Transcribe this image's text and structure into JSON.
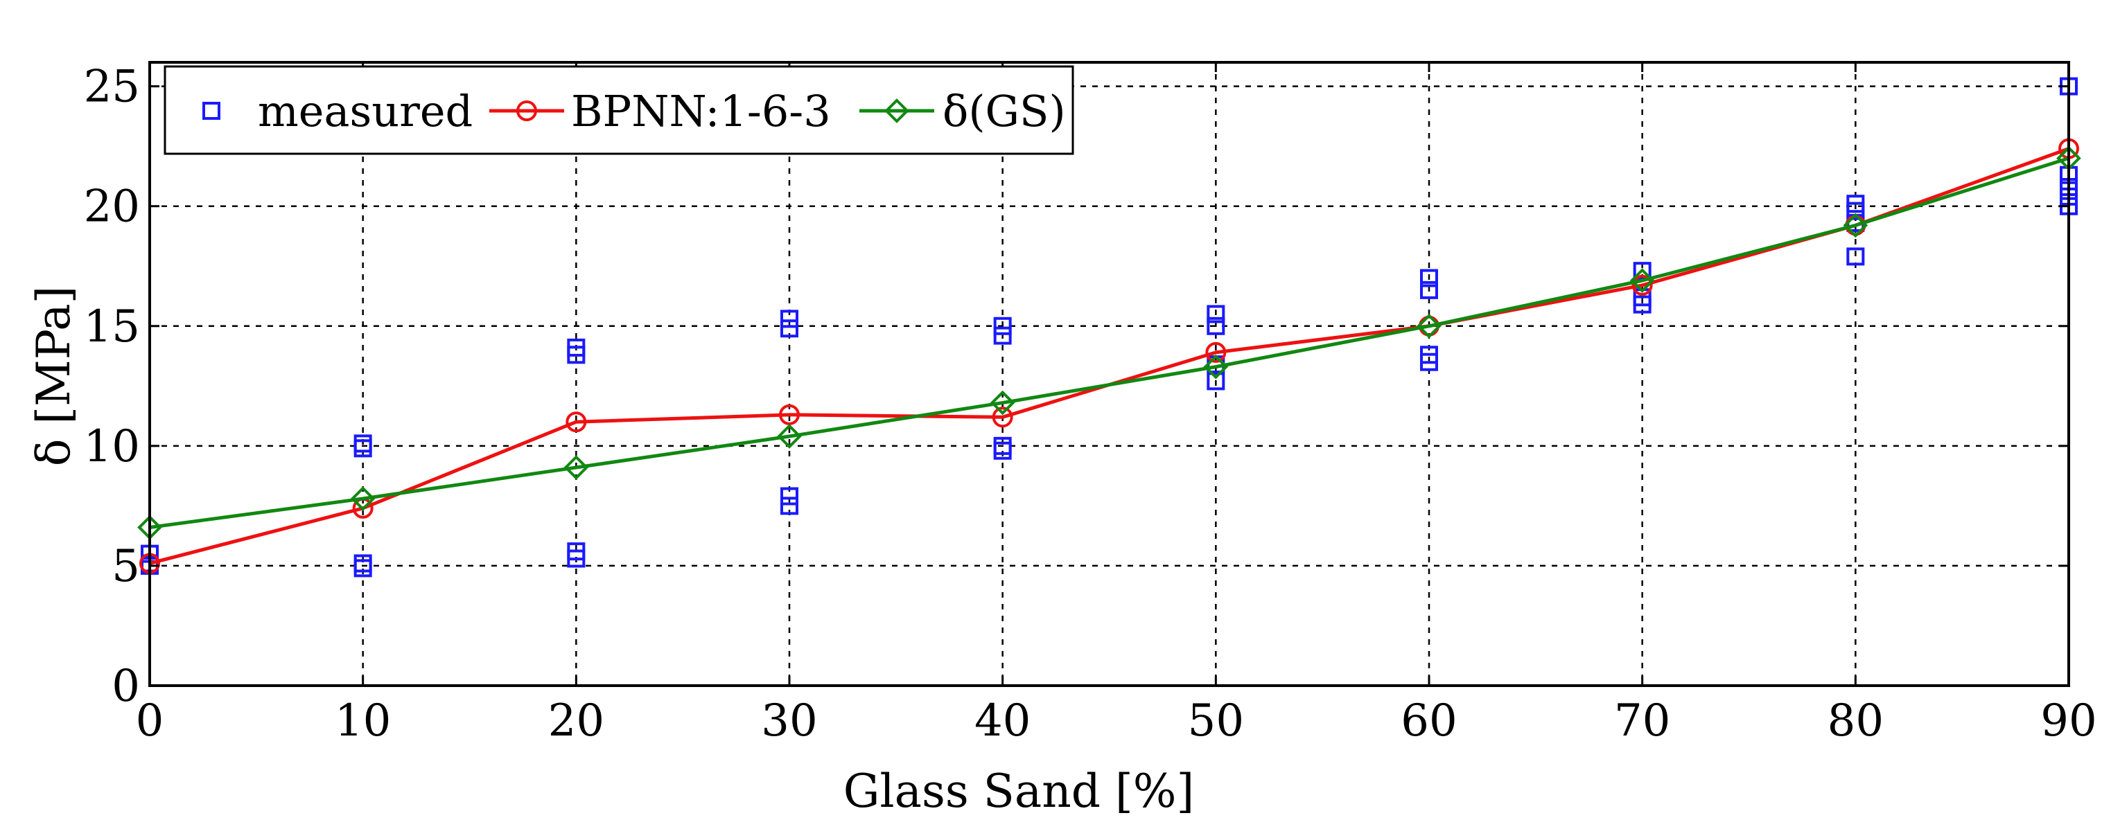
{
  "chart_data": {
    "type": "line",
    "title": "",
    "xlabel": "Glass Sand [%]",
    "ylabel": "δ [MPa]",
    "xlim": [
      0,
      90
    ],
    "ylim": [
      0,
      26
    ],
    "xticks": [
      0,
      10,
      20,
      30,
      40,
      50,
      60,
      70,
      80,
      90
    ],
    "yticks": [
      0,
      5,
      10,
      15,
      20,
      25
    ],
    "x_tick_labels": [
      "0",
      "10",
      "20",
      "30",
      "40",
      "50",
      "60",
      "70",
      "80",
      "90"
    ],
    "y_tick_labels": [
      "0",
      "5",
      "10",
      "15",
      "20",
      "25"
    ],
    "grid": true,
    "legend_position": "top-left",
    "series": [
      {
        "name": "measured",
        "style": "markers",
        "marker": "square",
        "color": "#1a1aff",
        "points": [
          {
            "x": 0,
            "y": 5.0
          },
          {
            "x": 0,
            "y": 5.1
          },
          {
            "x": 0,
            "y": 5.5
          },
          {
            "x": 10,
            "y": 4.9
          },
          {
            "x": 10,
            "y": 5.1
          },
          {
            "x": 10,
            "y": 9.9
          },
          {
            "x": 10,
            "y": 10.1
          },
          {
            "x": 20,
            "y": 5.3
          },
          {
            "x": 20,
            "y": 5.6
          },
          {
            "x": 20,
            "y": 13.8
          },
          {
            "x": 20,
            "y": 14.1
          },
          {
            "x": 30,
            "y": 7.5
          },
          {
            "x": 30,
            "y": 7.9
          },
          {
            "x": 30,
            "y": 14.9
          },
          {
            "x": 30,
            "y": 15.3
          },
          {
            "x": 40,
            "y": 9.8
          },
          {
            "x": 40,
            "y": 10.0
          },
          {
            "x": 40,
            "y": 14.6
          },
          {
            "x": 40,
            "y": 15.0
          },
          {
            "x": 50,
            "y": 12.7
          },
          {
            "x": 50,
            "y": 13.4
          },
          {
            "x": 50,
            "y": 15.0
          },
          {
            "x": 50,
            "y": 15.5
          },
          {
            "x": 60,
            "y": 13.5
          },
          {
            "x": 60,
            "y": 13.8
          },
          {
            "x": 60,
            "y": 16.5
          },
          {
            "x": 60,
            "y": 17.0
          },
          {
            "x": 70,
            "y": 15.9
          },
          {
            "x": 70,
            "y": 16.2
          },
          {
            "x": 70,
            "y": 17.3
          },
          {
            "x": 80,
            "y": 17.9
          },
          {
            "x": 80,
            "y": 19.3
          },
          {
            "x": 80,
            "y": 19.8
          },
          {
            "x": 80,
            "y": 20.1
          },
          {
            "x": 90,
            "y": 20.0
          },
          {
            "x": 90,
            "y": 20.4
          },
          {
            "x": 90,
            "y": 20.8
          },
          {
            "x": 90,
            "y": 21.3
          },
          {
            "x": 90,
            "y": 25.0
          }
        ]
      },
      {
        "name": "BPNN:1-6-3",
        "style": "line-markers",
        "marker": "circle",
        "color": "#ee1111",
        "points": [
          {
            "x": 0,
            "y": 5.1
          },
          {
            "x": 10,
            "y": 7.4
          },
          {
            "x": 20,
            "y": 11.0
          },
          {
            "x": 30,
            "y": 11.3
          },
          {
            "x": 40,
            "y": 11.2
          },
          {
            "x": 50,
            "y": 13.9
          },
          {
            "x": 60,
            "y": 15.0
          },
          {
            "x": 70,
            "y": 16.7
          },
          {
            "x": 80,
            "y": 19.2
          },
          {
            "x": 90,
            "y": 22.4
          }
        ]
      },
      {
        "name": "δ(GS)",
        "style": "line-markers",
        "marker": "diamond",
        "color": "#118811",
        "points": [
          {
            "x": 0,
            "y": 6.6
          },
          {
            "x": 10,
            "y": 7.8
          },
          {
            "x": 20,
            "y": 9.1
          },
          {
            "x": 30,
            "y": 10.4
          },
          {
            "x": 40,
            "y": 11.8
          },
          {
            "x": 50,
            "y": 13.3
          },
          {
            "x": 60,
            "y": 15.0
          },
          {
            "x": 70,
            "y": 16.9
          },
          {
            "x": 80,
            "y": 19.2
          },
          {
            "x": 90,
            "y": 22.0
          }
        ]
      }
    ]
  }
}
